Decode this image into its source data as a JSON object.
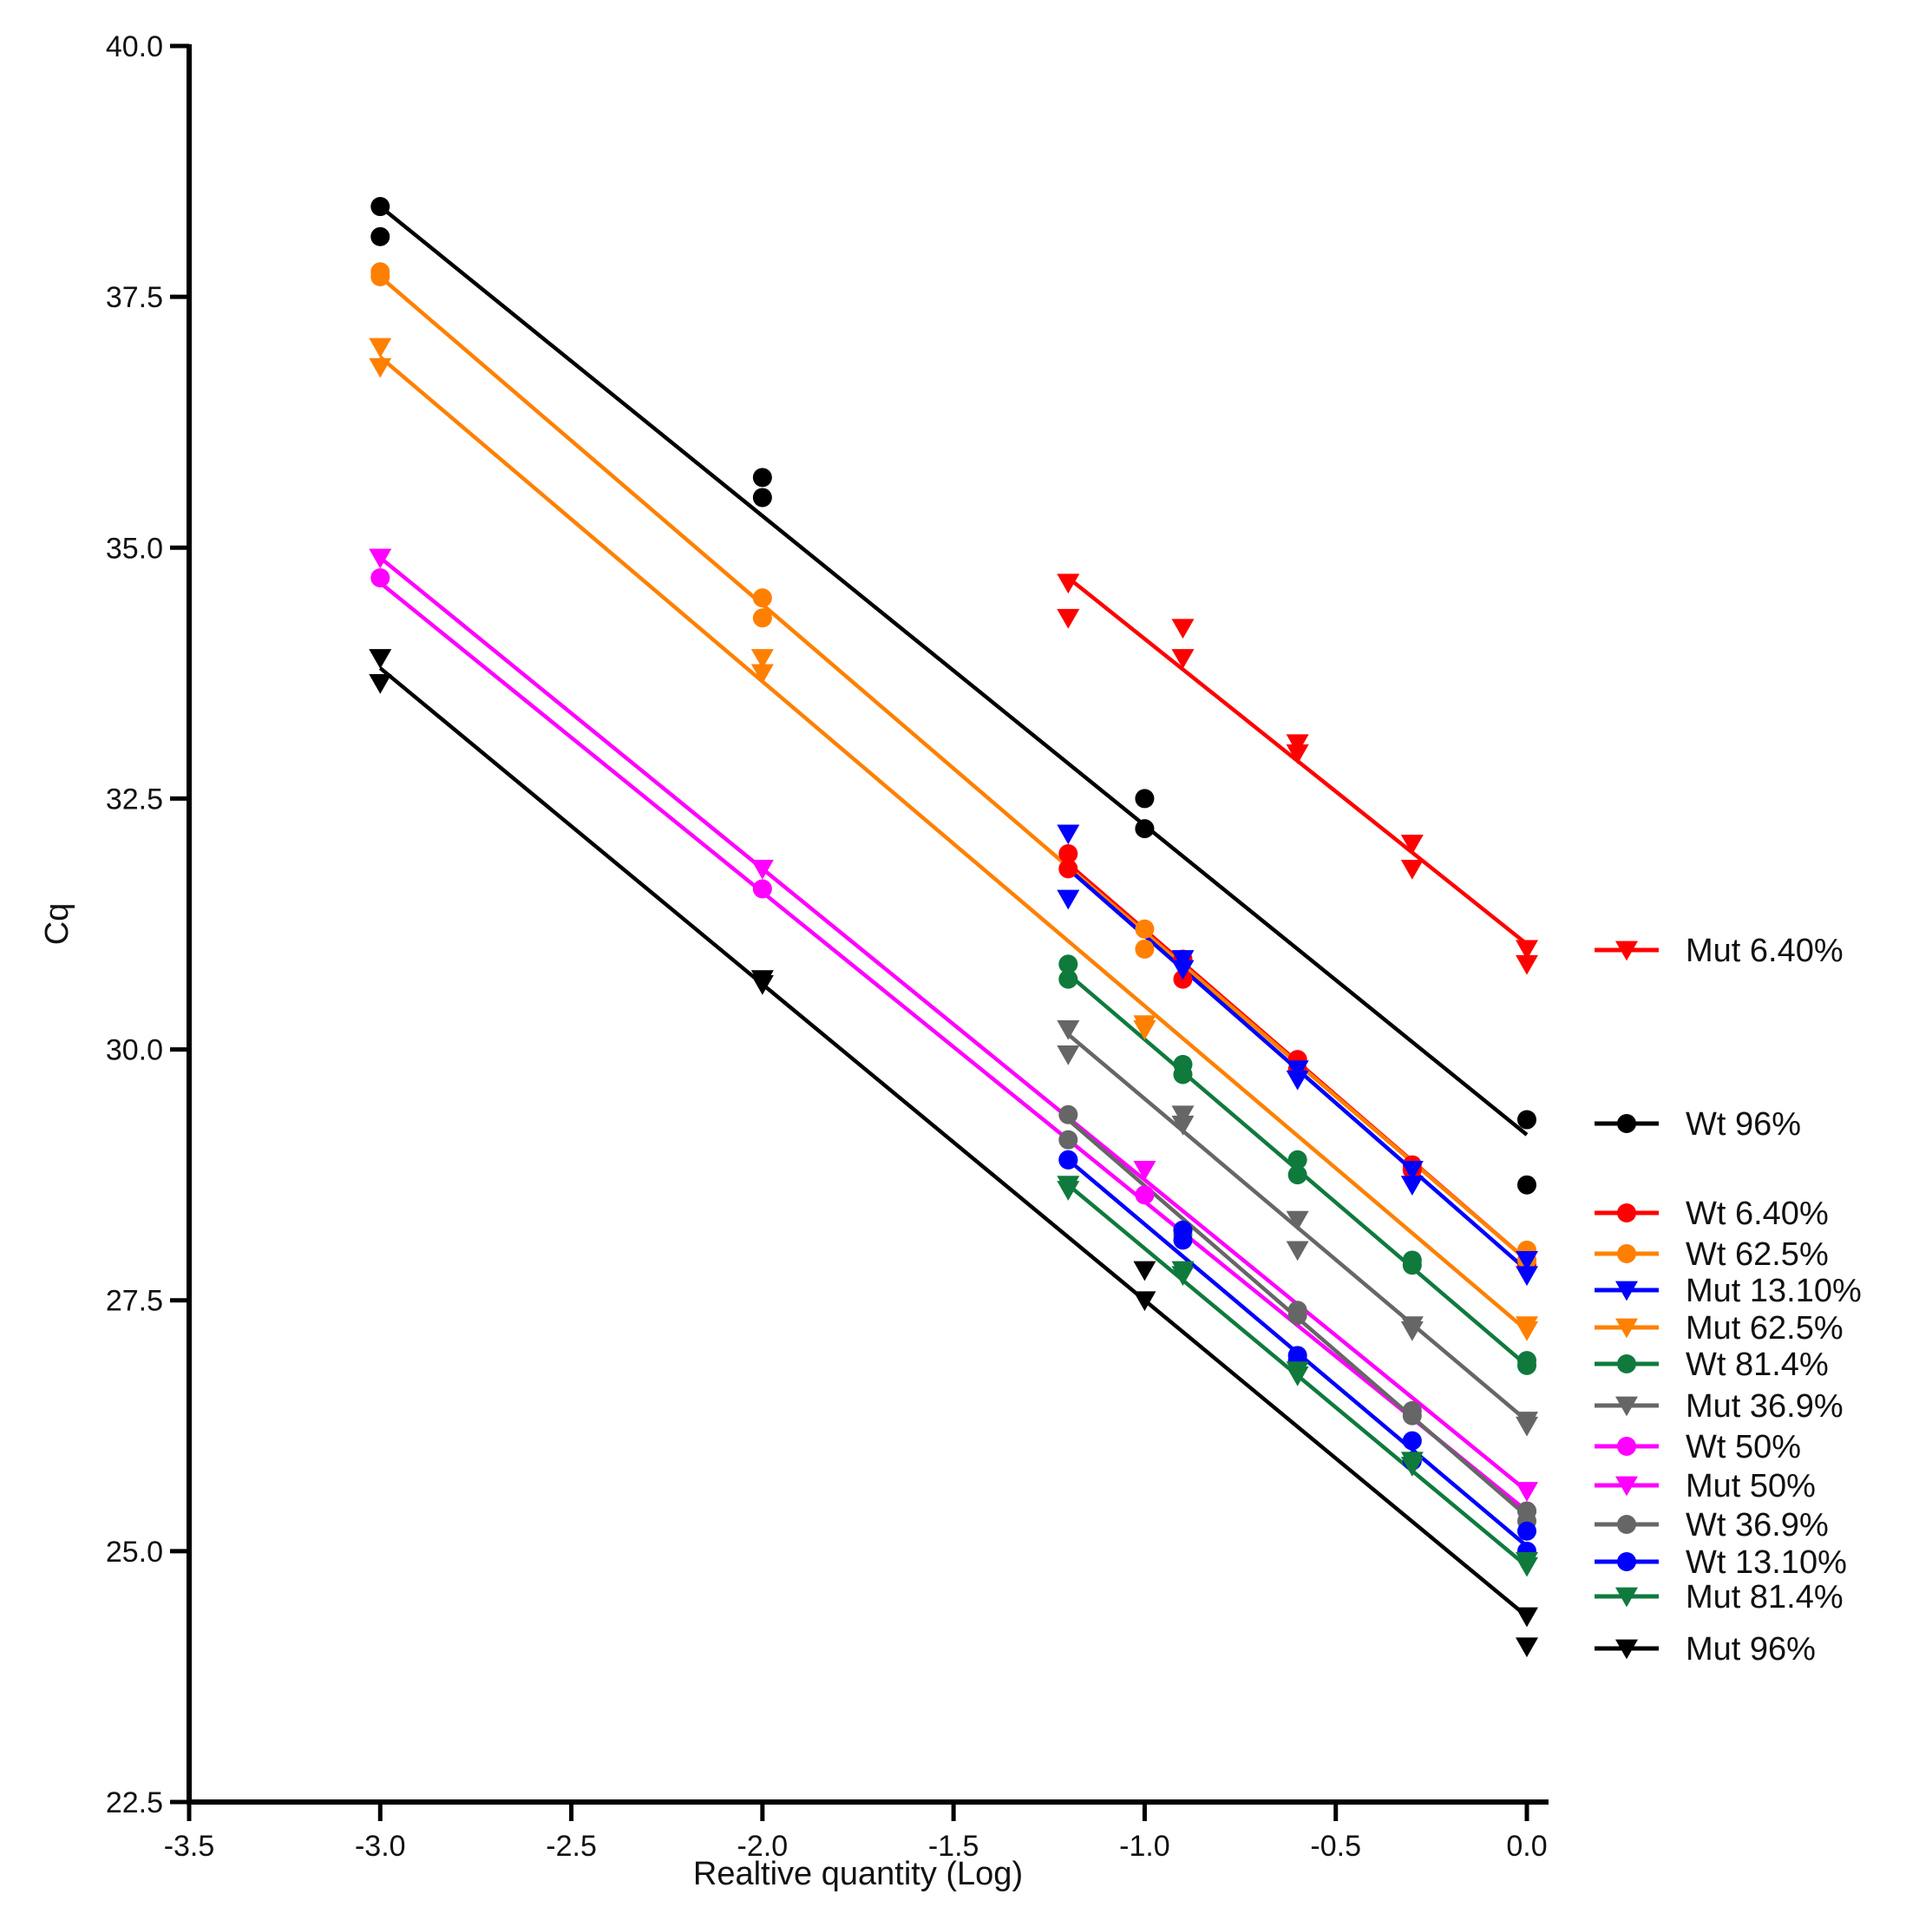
{
  "chart_data": {
    "type": "scatter",
    "title": "",
    "xlabel": "Realtive quantity (Log)",
    "ylabel": "Cq",
    "xlim": [
      -3.5,
      0.0
    ],
    "ylim": [
      22.5,
      40.0
    ],
    "x_ticks": [
      "-3.5",
      "-3.0",
      "-2.5",
      "-2.0",
      "-1.5",
      "-1.0",
      "-0.5",
      "0.0"
    ],
    "y_ticks": [
      "22.5",
      "25.0",
      "27.5",
      "30.0",
      "32.5",
      "35.0",
      "37.5",
      "40.0"
    ],
    "grid": false,
    "legend_position": "right",
    "series": [
      {
        "name": "Mut 6.40%",
        "color": "#ff0000",
        "marker": "triangle-down",
        "points": [
          [
            -1.2,
            34.65
          ],
          [
            -1.2,
            34.3
          ],
          [
            -0.9,
            34.2
          ],
          [
            -0.9,
            33.9
          ],
          [
            -0.6,
            33.05
          ],
          [
            -0.6,
            32.95
          ],
          [
            -0.3,
            32.05
          ],
          [
            -0.3,
            31.8
          ],
          [
            0.0,
            31.0
          ],
          [
            0.0,
            30.85
          ]
        ],
        "fit": [
          [
            -1.2,
            34.7
          ],
          [
            0.0,
            31.05
          ]
        ]
      },
      {
        "name": "Wt 96%",
        "color": "#000000",
        "marker": "circle",
        "points": [
          [
            -3.0,
            38.4
          ],
          [
            -3.0,
            38.1
          ],
          [
            -2.0,
            35.7
          ],
          [
            -2.0,
            35.5
          ],
          [
            -1.0,
            32.5
          ],
          [
            -1.0,
            32.2
          ],
          [
            0.0,
            29.3
          ],
          [
            0.0,
            28.65
          ]
        ],
        "fit": [
          [
            -3.0,
            38.4
          ],
          [
            0.0,
            29.15
          ]
        ]
      },
      {
        "name": "Wt 6.40%",
        "color": "#ff0000",
        "marker": "circle",
        "points": [
          [
            -1.2,
            31.95
          ],
          [
            -1.2,
            31.8
          ],
          [
            -0.9,
            30.9
          ],
          [
            -0.9,
            30.7
          ],
          [
            -0.6,
            29.9
          ],
          [
            -0.6,
            29.8
          ],
          [
            -0.3,
            28.85
          ],
          [
            -0.3,
            28.8
          ],
          [
            0.0,
            27.9
          ],
          [
            0.0,
            27.85
          ]
        ],
        "fit": [
          [
            -1.2,
            31.85
          ],
          [
            0.0,
            27.9
          ]
        ]
      },
      {
        "name": "Wt 62.5%",
        "color": "#ff8000",
        "marker": "circle",
        "points": [
          [
            -3.0,
            37.75
          ],
          [
            -3.0,
            37.7
          ],
          [
            -2.0,
            34.5
          ],
          [
            -2.0,
            34.3
          ],
          [
            -1.0,
            31.2
          ],
          [
            -1.0,
            31.0
          ],
          [
            0.0,
            28.0
          ],
          [
            0.0,
            27.9
          ]
        ],
        "fit": [
          [
            -3.0,
            37.7
          ],
          [
            0.0,
            27.9
          ]
        ]
      },
      {
        "name": "Mut 13.10%",
        "color": "#0000ff",
        "marker": "triangle-down",
        "points": [
          [
            -1.2,
            32.15
          ],
          [
            -1.2,
            31.5
          ],
          [
            -0.9,
            30.9
          ],
          [
            -0.9,
            30.8
          ],
          [
            -0.6,
            29.8
          ],
          [
            -0.6,
            29.7
          ],
          [
            -0.3,
            28.8
          ],
          [
            -0.3,
            28.65
          ],
          [
            0.0,
            27.9
          ],
          [
            0.0,
            27.75
          ]
        ],
        "fit": [
          [
            -1.2,
            31.8
          ],
          [
            0.0,
            27.8
          ]
        ]
      },
      {
        "name": "Mut 62.5%",
        "color": "#ff8000",
        "marker": "triangle-down",
        "points": [
          [
            -3.0,
            37.0
          ],
          [
            -3.0,
            36.8
          ],
          [
            -2.0,
            33.9
          ],
          [
            -2.0,
            33.75
          ],
          [
            -1.0,
            30.25
          ],
          [
            -1.0,
            30.2
          ],
          [
            0.0,
            27.25
          ],
          [
            0.0,
            27.2
          ]
        ],
        "fit": [
          [
            -3.0,
            36.9
          ],
          [
            0.0,
            27.2
          ]
        ]
      },
      {
        "name": "Wt 81.4%",
        "color": "#0f7a3c",
        "marker": "circle",
        "points": [
          [
            -1.2,
            30.85
          ],
          [
            -1.2,
            30.7
          ],
          [
            -0.9,
            29.85
          ],
          [
            -0.9,
            29.75
          ],
          [
            -0.6,
            28.9
          ],
          [
            -0.6,
            28.75
          ],
          [
            -0.3,
            27.9
          ],
          [
            -0.3,
            27.85
          ],
          [
            0.0,
            26.9
          ],
          [
            0.0,
            26.85
          ]
        ],
        "fit": [
          [
            -1.2,
            30.75
          ],
          [
            0.0,
            26.85
          ]
        ]
      },
      {
        "name": "Mut 36.9%",
        "color": "#666666",
        "marker": "triangle-down",
        "points": [
          [
            -1.2,
            30.2
          ],
          [
            -1.2,
            29.95
          ],
          [
            -0.9,
            29.35
          ],
          [
            -0.9,
            29.25
          ],
          [
            -0.6,
            28.3
          ],
          [
            -0.6,
            28.0
          ],
          [
            -0.3,
            27.25
          ],
          [
            -0.3,
            27.2
          ],
          [
            0.0,
            26.3
          ],
          [
            0.0,
            26.25
          ]
        ],
        "fit": [
          [
            -1.2,
            30.15
          ],
          [
            0.0,
            26.3
          ]
        ]
      },
      {
        "name": "Wt 50%",
        "color": "#ff00ff",
        "marker": "circle",
        "points": [
          [
            -3.0,
            34.7
          ],
          [
            -2.0,
            31.6
          ],
          [
            -1.0,
            28.55
          ],
          [
            0.0,
            25.4
          ]
        ],
        "fit": [
          [
            -3.0,
            34.65
          ],
          [
            0.0,
            25.4
          ]
        ]
      },
      {
        "name": "Mut 50%",
        "color": "#ff00ff",
        "marker": "triangle-down",
        "points": [
          [
            -3.0,
            34.9
          ],
          [
            -2.0,
            31.8
          ],
          [
            -1.0,
            28.8
          ],
          [
            0.0,
            25.6
          ]
        ],
        "fit": [
          [
            -3.0,
            34.9
          ],
          [
            0.0,
            25.6
          ]
        ]
      },
      {
        "name": "Wt 36.9%",
        "color": "#666666",
        "marker": "circle",
        "points": [
          [
            -1.2,
            29.35
          ],
          [
            -1.2,
            29.1
          ],
          [
            -0.9,
            28.2
          ],
          [
            -0.9,
            28.15
          ],
          [
            -0.6,
            27.4
          ],
          [
            -0.6,
            27.35
          ],
          [
            -0.3,
            26.4
          ],
          [
            -0.3,
            26.35
          ],
          [
            0.0,
            25.4
          ],
          [
            0.0,
            25.3
          ]
        ],
        "fit": [
          [
            -1.2,
            29.3
          ],
          [
            0.0,
            25.35
          ]
        ]
      },
      {
        "name": "Wt 13.10%",
        "color": "#0000ff",
        "marker": "circle",
        "points": [
          [
            -1.2,
            28.9
          ],
          [
            -1.2,
            28.9
          ],
          [
            -0.9,
            28.2
          ],
          [
            -0.9,
            28.1
          ],
          [
            -0.6,
            26.95
          ],
          [
            -0.6,
            26.9
          ],
          [
            -0.3,
            26.1
          ],
          [
            -0.3,
            25.9
          ],
          [
            0.0,
            25.2
          ],
          [
            0.0,
            25.0
          ]
        ],
        "fit": [
          [
            -1.2,
            28.9
          ],
          [
            0.0,
            25.05
          ]
        ]
      },
      {
        "name": "Mut 81.4%",
        "color": "#0f7a3c",
        "marker": "triangle-down",
        "points": [
          [
            -1.2,
            28.65
          ],
          [
            -1.2,
            28.6
          ],
          [
            -0.9,
            27.8
          ],
          [
            -0.9,
            27.75
          ],
          [
            -0.6,
            26.8
          ],
          [
            -0.6,
            26.75
          ],
          [
            -0.3,
            25.9
          ],
          [
            -0.3,
            25.85
          ],
          [
            0.0,
            24.9
          ],
          [
            0.0,
            24.85
          ]
        ],
        "fit": [
          [
            -1.2,
            28.65
          ],
          [
            0.0,
            24.85
          ]
        ]
      },
      {
        "name": "Mut 96%",
        "color": "#000000",
        "marker": "triangle-down",
        "points": [
          [
            -3.0,
            33.9
          ],
          [
            -3.0,
            33.65
          ],
          [
            -2.0,
            30.7
          ],
          [
            -2.0,
            30.65
          ],
          [
            -1.0,
            27.8
          ],
          [
            -1.0,
            27.5
          ],
          [
            0.0,
            24.35
          ],
          [
            0.0,
            24.05
          ]
        ],
        "fit": [
          [
            -3.0,
            33.8
          ],
          [
            0.0,
            24.35
          ]
        ]
      }
    ]
  }
}
